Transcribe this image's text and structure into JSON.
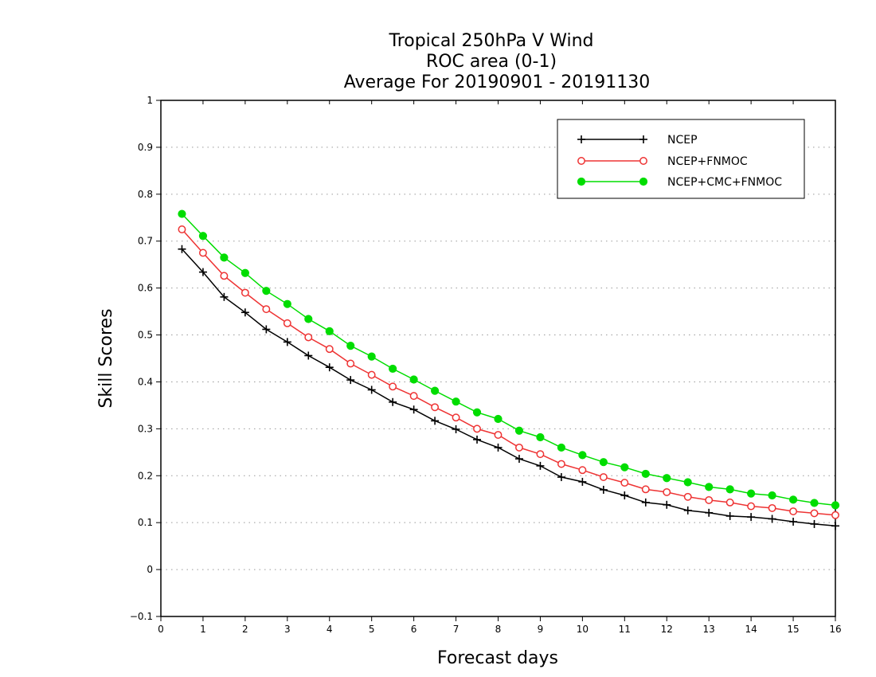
{
  "chart_data": {
    "type": "line",
    "title_lines": [
      "Tropical 250hPa V Wind",
      "ROC area (0-1)",
      "Average For 20190901 - 20191130"
    ],
    "xlabel": "Forecast days",
    "ylabel": "Skill Scores",
    "xlim": [
      0,
      16
    ],
    "ylim": [
      -0.1,
      1
    ],
    "x_ticks": [
      "0",
      "1",
      "2",
      "3",
      "4",
      "5",
      "6",
      "7",
      "8",
      "9",
      "10",
      "11",
      "12",
      "13",
      "14",
      "15",
      "16"
    ],
    "y_ticks": [
      "−0.1",
      "0",
      "0.1",
      "0.2",
      "0.3",
      "0.4",
      "0.5",
      "0.6",
      "0.7",
      "0.8",
      "0.9",
      "1"
    ],
    "grid": true,
    "legend_position": "top-right",
    "x": [
      0.5,
      1,
      1.5,
      2,
      2.5,
      3,
      3.5,
      4,
      4.5,
      5,
      5.5,
      6,
      6.5,
      7,
      7.5,
      8,
      8.5,
      9,
      9.5,
      10,
      10.5,
      11,
      11.5,
      12,
      12.5,
      13,
      13.5,
      14,
      14.5,
      15,
      15.5,
      16
    ],
    "series": [
      {
        "name": "NCEP",
        "color": "#000000",
        "marker": "plus",
        "values": [
          0.683,
          0.634,
          0.581,
          0.548,
          0.512,
          0.485,
          0.456,
          0.431,
          0.404,
          0.383,
          0.357,
          0.341,
          0.317,
          0.299,
          0.277,
          0.26,
          0.236,
          0.221,
          0.197,
          0.187,
          0.17,
          0.158,
          0.143,
          0.138,
          0.126,
          0.121,
          0.114,
          0.112,
          0.108,
          0.102,
          0.097,
          0.093
        ]
      },
      {
        "name": "NCEP+FNMOC",
        "color": "#ee3333",
        "marker": "open-circle",
        "values": [
          0.725,
          0.675,
          0.626,
          0.59,
          0.555,
          0.525,
          0.495,
          0.47,
          0.439,
          0.415,
          0.39,
          0.37,
          0.346,
          0.324,
          0.3,
          0.287,
          0.26,
          0.246,
          0.225,
          0.212,
          0.197,
          0.185,
          0.171,
          0.165,
          0.155,
          0.148,
          0.143,
          0.135,
          0.131,
          0.124,
          0.12,
          0.116
        ]
      },
      {
        "name": "NCEP+CMC+FNMOC",
        "color": "#00dd00",
        "marker": "filled-circle",
        "values": [
          0.758,
          0.711,
          0.665,
          0.632,
          0.594,
          0.566,
          0.534,
          0.508,
          0.477,
          0.454,
          0.428,
          0.405,
          0.381,
          0.358,
          0.335,
          0.321,
          0.296,
          0.282,
          0.26,
          0.244,
          0.229,
          0.218,
          0.204,
          0.195,
          0.186,
          0.176,
          0.171,
          0.162,
          0.158,
          0.149,
          0.142,
          0.137
        ]
      }
    ]
  }
}
